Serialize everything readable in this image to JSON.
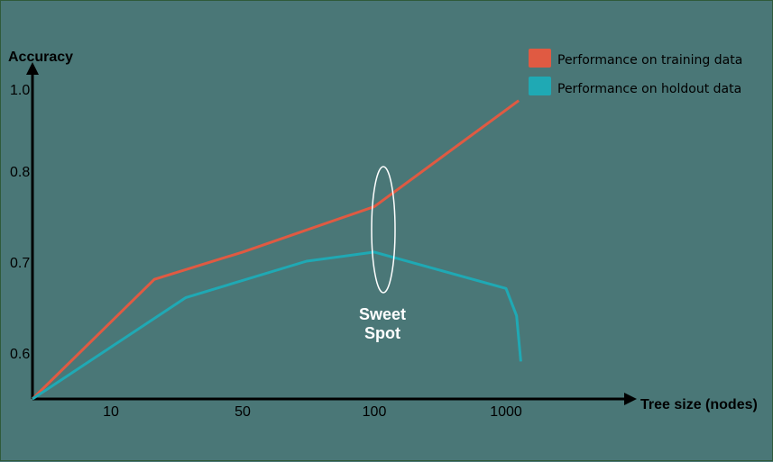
{
  "colors": {
    "background": "#4a7777",
    "training": "#e05a42",
    "holdout": "#1fa9b4",
    "axis": "#000000",
    "annotation": "#ffffff"
  },
  "chart_data": {
    "type": "line",
    "title": "",
    "xlabel": "Tree size (nodes)",
    "ylabel": "Accuracy",
    "x_scale": "log",
    "x_ticks": [
      "10",
      "50",
      "100",
      "1000"
    ],
    "y_ticks": [
      "1.0",
      "0.8",
      "0.7",
      "0.6"
    ],
    "grid": false,
    "legend_position": "top-right",
    "series": [
      {
        "name": "Performance on training data",
        "color": "#e05a42",
        "points": [
          [
            0,
            0.55
          ],
          [
            17,
            0.68
          ],
          [
            50,
            0.71
          ],
          [
            100,
            0.76
          ],
          [
            1500,
            0.97
          ]
        ]
      },
      {
        "name": "Performance on holdout data",
        "color": "#1fa9b4",
        "points": [
          [
            0,
            0.55
          ],
          [
            25,
            0.66
          ],
          [
            70,
            0.7
          ],
          [
            100,
            0.71
          ],
          [
            1000,
            0.67
          ],
          [
            1400,
            0.64
          ],
          [
            1600,
            0.59
          ]
        ]
      }
    ],
    "annotations": [
      {
        "text_line1": "Sweet",
        "text_line2": "Spot",
        "x": 100
      }
    ]
  }
}
